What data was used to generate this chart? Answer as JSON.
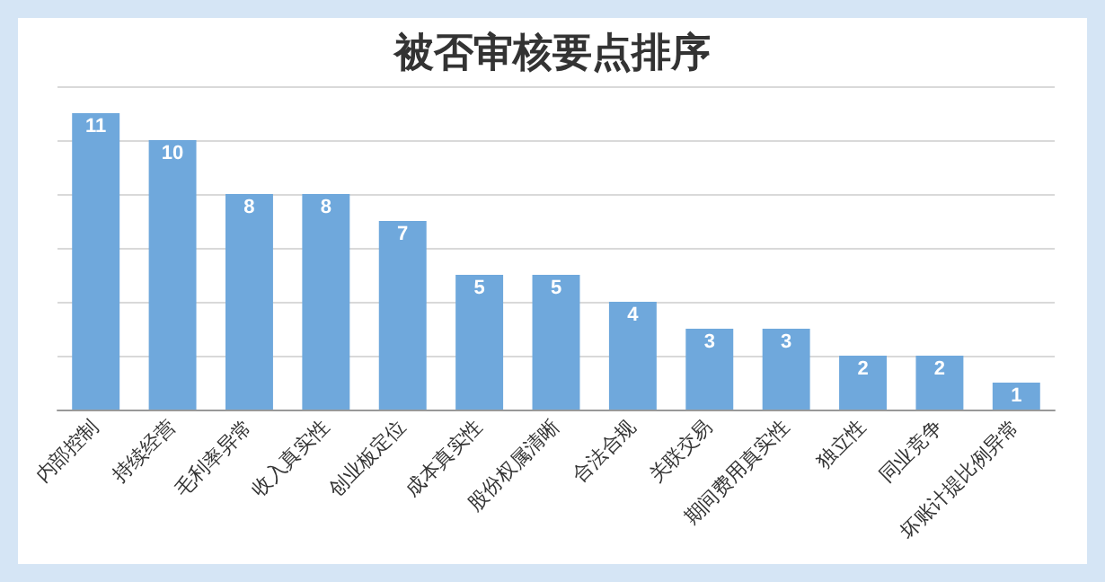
{
  "chart_data": {
    "type": "bar",
    "title": "被否审核要点排序",
    "categories": [
      "内部控制",
      "持续经营",
      "毛利率异常",
      "收入真实性",
      "创业板定位",
      "成本真实性",
      "股份权属清晰",
      "合法合规",
      "关联交易",
      "期间费用真实性",
      "独立性",
      "同业竞争",
      "坏账计提比例异常"
    ],
    "values": [
      11,
      10,
      8,
      8,
      7,
      5,
      5,
      4,
      3,
      3,
      2,
      2,
      1
    ],
    "color": "#6fa8dc",
    "ylim": [
      0,
      12
    ],
    "yticks": [
      {
        "value": 0,
        "label": null
      },
      {
        "value": 2,
        "label": null
      },
      {
        "value": 4,
        "label": null
      },
      {
        "value": 6,
        "label": null
      },
      {
        "value": 8,
        "label": null
      },
      {
        "value": 10,
        "label": null
      },
      {
        "value": 12,
        "label": null
      }
    ],
    "tick_labels": "x",
    "grid": "y",
    "data_labels": true
  }
}
